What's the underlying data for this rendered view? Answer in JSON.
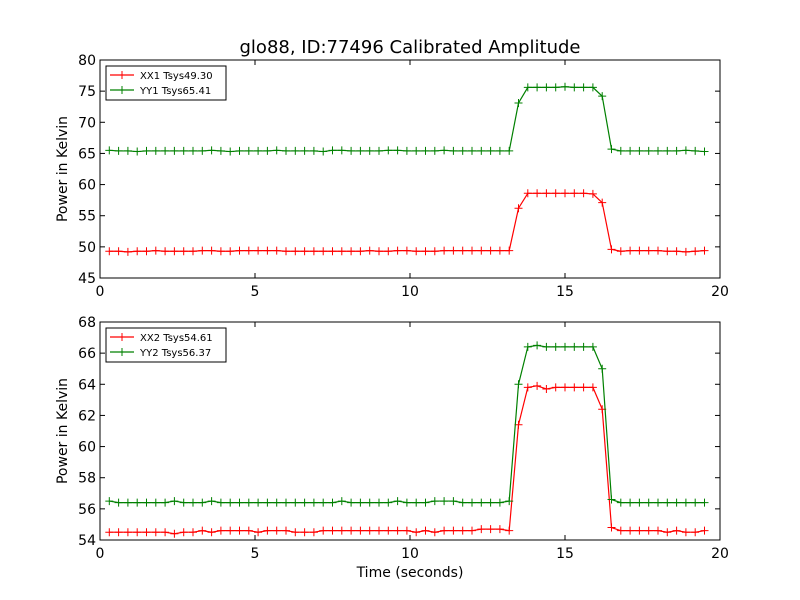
{
  "title": "glo88, ID:77496 Calibrated Amplitude",
  "chart_data": [
    {
      "type": "line",
      "xlabel": "",
      "ylabel": "Power in Kelvin",
      "xlim": [
        0,
        20
      ],
      "ylim": [
        45,
        80
      ],
      "xticks": [
        0,
        5,
        10,
        15,
        20
      ],
      "yticks": [
        45,
        50,
        55,
        60,
        65,
        70,
        75,
        80
      ],
      "grid": false,
      "legend_position": "top-left",
      "x": [
        0.3,
        0.6,
        0.9,
        1.2,
        1.5,
        1.8,
        2.1,
        2.4,
        2.7,
        3.0,
        3.3,
        3.6,
        3.9,
        4.2,
        4.5,
        4.8,
        5.1,
        5.4,
        5.7,
        6.0,
        6.3,
        6.6,
        6.9,
        7.2,
        7.5,
        7.8,
        8.1,
        8.4,
        8.7,
        9.0,
        9.3,
        9.6,
        9.9,
        10.2,
        10.5,
        10.8,
        11.1,
        11.4,
        11.7,
        12.0,
        12.3,
        12.6,
        12.9,
        13.2,
        13.5,
        13.8,
        14.1,
        14.4,
        14.7,
        15.0,
        15.3,
        15.6,
        15.9,
        16.2,
        16.5,
        16.8,
        17.1,
        17.4,
        17.7,
        18.0,
        18.3,
        18.6,
        18.9,
        19.2,
        19.5
      ],
      "series": [
        {
          "name": "XX1 Tsys49.30",
          "color": "#ff0000",
          "values": [
            49.3,
            49.3,
            49.2,
            49.3,
            49.3,
            49.4,
            49.3,
            49.3,
            49.3,
            49.3,
            49.4,
            49.4,
            49.3,
            49.3,
            49.4,
            49.4,
            49.4,
            49.4,
            49.4,
            49.3,
            49.3,
            49.3,
            49.3,
            49.3,
            49.3,
            49.3,
            49.3,
            49.3,
            49.4,
            49.3,
            49.3,
            49.4,
            49.4,
            49.3,
            49.3,
            49.3,
            49.4,
            49.4,
            49.4,
            49.4,
            49.4,
            49.4,
            49.4,
            49.4,
            56.2,
            58.6,
            58.6,
            58.6,
            58.6,
            58.6,
            58.6,
            58.6,
            58.5,
            57.1,
            49.6,
            49.3,
            49.4,
            49.4,
            49.4,
            49.4,
            49.3,
            49.3,
            49.2,
            49.3,
            49.4
          ]
        },
        {
          "name": "YY1 Tsys65.41",
          "color": "#008000",
          "values": [
            65.5,
            65.4,
            65.4,
            65.3,
            65.4,
            65.4,
            65.4,
            65.4,
            65.4,
            65.4,
            65.4,
            65.5,
            65.4,
            65.3,
            65.4,
            65.4,
            65.4,
            65.4,
            65.5,
            65.4,
            65.4,
            65.4,
            65.4,
            65.3,
            65.5,
            65.5,
            65.4,
            65.4,
            65.4,
            65.4,
            65.5,
            65.5,
            65.4,
            65.4,
            65.4,
            65.4,
            65.5,
            65.4,
            65.4,
            65.4,
            65.4,
            65.4,
            65.4,
            65.4,
            73.1,
            75.6,
            75.6,
            75.6,
            75.6,
            75.7,
            75.6,
            75.6,
            75.6,
            74.2,
            65.7,
            65.4,
            65.4,
            65.4,
            65.4,
            65.4,
            65.4,
            65.4,
            65.5,
            65.4,
            65.3
          ]
        }
      ]
    },
    {
      "type": "line",
      "xlabel": "Time (seconds)",
      "ylabel": "Power in Kelvin",
      "xlim": [
        0,
        20
      ],
      "ylim": [
        54,
        68
      ],
      "xticks": [
        0,
        5,
        10,
        15,
        20
      ],
      "yticks": [
        54,
        56,
        58,
        60,
        62,
        64,
        66,
        68
      ],
      "grid": false,
      "legend_position": "top-left",
      "x": [
        0.3,
        0.6,
        0.9,
        1.2,
        1.5,
        1.8,
        2.1,
        2.4,
        2.7,
        3.0,
        3.3,
        3.6,
        3.9,
        4.2,
        4.5,
        4.8,
        5.1,
        5.4,
        5.7,
        6.0,
        6.3,
        6.6,
        6.9,
        7.2,
        7.5,
        7.8,
        8.1,
        8.4,
        8.7,
        9.0,
        9.3,
        9.6,
        9.9,
        10.2,
        10.5,
        10.8,
        11.1,
        11.4,
        11.7,
        12.0,
        12.3,
        12.6,
        12.9,
        13.2,
        13.5,
        13.8,
        14.1,
        14.4,
        14.7,
        15.0,
        15.3,
        15.6,
        15.9,
        16.2,
        16.5,
        16.8,
        17.1,
        17.4,
        17.7,
        18.0,
        18.3,
        18.6,
        18.9,
        19.2,
        19.5
      ],
      "series": [
        {
          "name": "XX2 Tsys54.61",
          "color": "#ff0000",
          "values": [
            54.5,
            54.5,
            54.5,
            54.5,
            54.5,
            54.5,
            54.5,
            54.4,
            54.5,
            54.5,
            54.6,
            54.5,
            54.6,
            54.6,
            54.6,
            54.6,
            54.5,
            54.6,
            54.6,
            54.6,
            54.5,
            54.5,
            54.5,
            54.6,
            54.6,
            54.6,
            54.6,
            54.6,
            54.6,
            54.6,
            54.6,
            54.6,
            54.6,
            54.5,
            54.6,
            54.5,
            54.6,
            54.6,
            54.6,
            54.6,
            54.7,
            54.7,
            54.7,
            54.6,
            61.4,
            63.8,
            63.9,
            63.7,
            63.8,
            63.8,
            63.8,
            63.8,
            63.8,
            62.4,
            54.8,
            54.6,
            54.6,
            54.6,
            54.6,
            54.6,
            54.5,
            54.6,
            54.5,
            54.5,
            54.6
          ]
        },
        {
          "name": "YY2 Tsys56.37",
          "color": "#008000",
          "values": [
            56.5,
            56.4,
            56.4,
            56.4,
            56.4,
            56.4,
            56.4,
            56.5,
            56.4,
            56.4,
            56.4,
            56.5,
            56.4,
            56.4,
            56.4,
            56.4,
            56.4,
            56.4,
            56.4,
            56.4,
            56.4,
            56.4,
            56.4,
            56.4,
            56.4,
            56.5,
            56.4,
            56.4,
            56.4,
            56.4,
            56.4,
            56.5,
            56.4,
            56.4,
            56.4,
            56.5,
            56.5,
            56.5,
            56.4,
            56.4,
            56.4,
            56.4,
            56.4,
            56.5,
            64.0,
            66.4,
            66.5,
            66.4,
            66.4,
            66.4,
            66.4,
            66.4,
            66.4,
            65.0,
            56.6,
            56.4,
            56.4,
            56.4,
            56.4,
            56.4,
            56.4,
            56.4,
            56.4,
            56.4,
            56.4
          ]
        }
      ]
    }
  ]
}
